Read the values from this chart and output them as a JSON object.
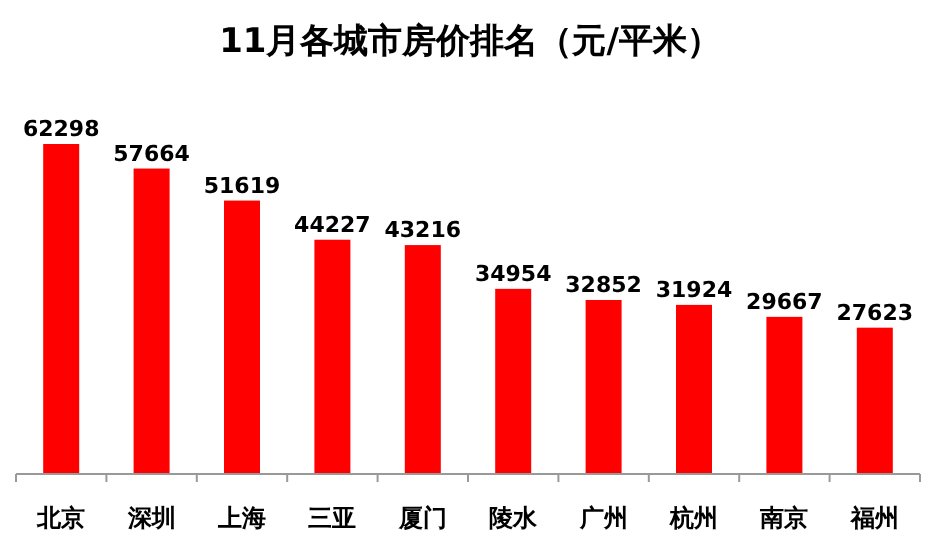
{
  "chart_data": {
    "type": "bar",
    "title": "11月各城市房价排名（元/平米）",
    "categories": [
      "北京",
      "深圳",
      "上海",
      "三亚",
      "厦门",
      "陵水",
      "广州",
      "杭州",
      "南京",
      "福州"
    ],
    "values": [
      62298,
      57664,
      51619,
      44227,
      43216,
      34954,
      32852,
      31924,
      29667,
      27623
    ],
    "color": "#ff0000",
    "data_labels": true,
    "relative": false
  }
}
